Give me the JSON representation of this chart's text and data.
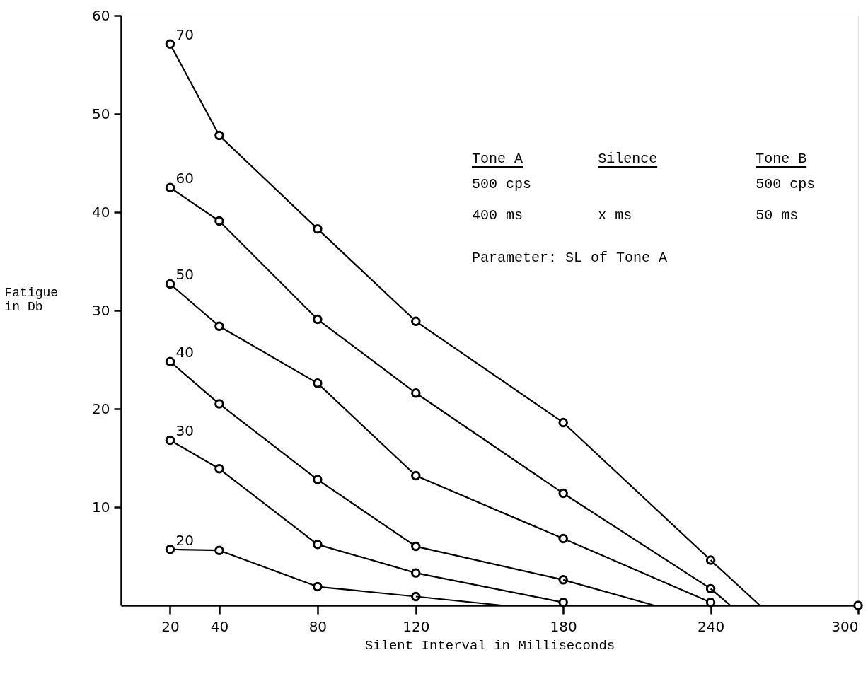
{
  "chart_data": {
    "type": "line",
    "xlabel": "Silent Interval in Milliseconds",
    "ylabel": "Fatigue in Db",
    "xlim": [
      0,
      300
    ],
    "xticks": [
      20,
      40,
      80,
      120,
      180,
      240,
      300
    ],
    "ylim": [
      0,
      60
    ],
    "yticks": [
      10,
      20,
      30,
      40,
      50,
      60
    ],
    "grid": false,
    "marker": "circle",
    "line_style": "solid",
    "annotations": [
      "Tone A",
      "Silence",
      "Tone B",
      "500 cps",
      "500 cps",
      "400 ms",
      "x ms",
      "50 ms",
      "Parameter:  SL of Tone A"
    ],
    "series": [
      {
        "name": "70",
        "color": "#000000",
        "x": [
          20,
          40,
          80,
          120,
          180,
          240
        ],
        "values": [
          57.1,
          47.8,
          38.3,
          28.9,
          18.6,
          4.6
        ]
      },
      {
        "name": "60",
        "color": "#000000",
        "x": [
          20,
          40,
          80,
          120,
          180,
          240
        ],
        "values": [
          42.5,
          39.1,
          29.1,
          21.6,
          11.4,
          1.7
        ]
      },
      {
        "name": "50",
        "color": "#000000",
        "x": [
          20,
          40,
          80,
          120,
          180,
          240
        ],
        "values": [
          32.7,
          28.4,
          22.6,
          13.2,
          6.8,
          0.3
        ]
      },
      {
        "name": "40",
        "color": "#000000",
        "x": [
          20,
          40,
          80,
          120,
          180
        ],
        "values": [
          24.8,
          20.5,
          12.8,
          6.0,
          2.6
        ]
      },
      {
        "name": "30",
        "color": "#000000",
        "x": [
          20,
          40,
          80,
          120,
          180
        ],
        "values": [
          16.8,
          13.9,
          6.2,
          3.3,
          0.3
        ]
      },
      {
        "name": "20",
        "color": "#000000",
        "x": [
          20,
          40,
          80,
          120
        ],
        "values": [
          5.7,
          5.6,
          1.9,
          0.9
        ]
      },
      {
        "color": "#000000",
        "marker": "none",
        "x": [
          240,
          260
        ],
        "values": [
          4.6,
          0
        ]
      },
      {
        "color": "#000000",
        "marker": "none",
        "x": [
          240,
          248
        ],
        "values": [
          1.7,
          0
        ]
      },
      {
        "color": "#000000",
        "marker": "none",
        "x": [
          180,
          217
        ],
        "values": [
          2.6,
          0
        ]
      },
      {
        "color": "#000000",
        "marker": "none",
        "x": [
          120,
          155
        ],
        "values": [
          0.9,
          0
        ]
      },
      {
        "color": "#000000",
        "x": [
          300
        ],
        "values": [
          0
        ]
      }
    ]
  }
}
